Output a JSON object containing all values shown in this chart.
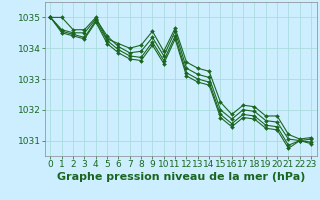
{
  "title": "Graphe pression niveau de la mer (hPa)",
  "background_color": "#cceeff",
  "grid_color": "#aadddd",
  "line_color": "#1a6620",
  "marker_color": "#1a6620",
  "xlim": [
    -0.5,
    23.5
  ],
  "ylim": [
    1030.5,
    1035.5
  ],
  "yticks": [
    1031,
    1032,
    1033,
    1034,
    1035
  ],
  "xticks": [
    0,
    1,
    2,
    3,
    4,
    5,
    6,
    7,
    8,
    9,
    10,
    11,
    12,
    13,
    14,
    15,
    16,
    17,
    18,
    19,
    20,
    21,
    22,
    23
  ],
  "series": [
    [
      1035.0,
      1035.0,
      1034.6,
      1034.6,
      1035.0,
      1034.3,
      1034.15,
      1034.0,
      1034.1,
      1034.55,
      1033.9,
      1034.65,
      1033.55,
      1033.35,
      1033.25,
      1032.25,
      1031.85,
      1032.15,
      1032.1,
      1031.8,
      1031.8,
      1031.2,
      1031.05,
      1031.1
    ],
    [
      1035.0,
      1034.6,
      1034.5,
      1034.5,
      1034.95,
      1034.4,
      1034.05,
      1033.85,
      1033.9,
      1034.35,
      1033.75,
      1034.55,
      1033.35,
      1033.15,
      1033.05,
      1032.0,
      1031.7,
      1032.0,
      1031.95,
      1031.65,
      1031.6,
      1031.05,
      1031.0,
      1031.05
    ],
    [
      1035.0,
      1034.55,
      1034.45,
      1034.35,
      1034.9,
      1034.25,
      1033.95,
      1033.75,
      1033.7,
      1034.2,
      1033.6,
      1034.4,
      1033.2,
      1033.0,
      1032.9,
      1031.85,
      1031.55,
      1031.85,
      1031.8,
      1031.5,
      1031.45,
      1030.85,
      1031.0,
      1030.95
    ],
    [
      1035.0,
      1034.5,
      1034.4,
      1034.3,
      1034.85,
      1034.15,
      1033.85,
      1033.65,
      1033.6,
      1034.1,
      1033.5,
      1034.3,
      1033.1,
      1032.9,
      1032.8,
      1031.75,
      1031.45,
      1031.75,
      1031.7,
      1031.4,
      1031.35,
      1030.75,
      1031.0,
      1030.9
    ]
  ],
  "title_fontsize": 8,
  "tick_fontsize": 6.5,
  "title_color": "#1a6620",
  "tick_color": "#1a6620",
  "axis_color": "#1a6620",
  "spine_color": "#888888"
}
